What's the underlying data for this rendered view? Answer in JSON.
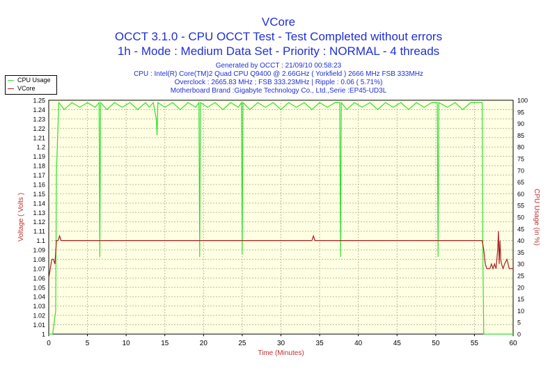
{
  "header": {
    "title": "VCore",
    "line2": "OCCT 3.1.0 - CPU OCCT Test - Test Completed without errors",
    "line3": "1h - Mode : Medium Data Set - Priority : NORMAL - 4 threads"
  },
  "info": {
    "generated": "Generated by OCCT : 21/09/10 00:58:23",
    "cpu": "CPU : Intel(R) Core(TM)2 Quad CPU Q9400 @ 2.66GHz ( Yorkfield ) 2666 MHz FSB 333MHz",
    "overclock": "Overclock : 2665.83 MHz ; FSB 333.23MHz | Ripple : 0.06 ( 5.71%)",
    "motherboard": "Motherboard Brand :Gigabyte Technology Co., Ltd.,Serie :EP45-UD3L"
  },
  "chart_data": {
    "type": "line",
    "xlabel": "Time (Minutes)",
    "ylabel_left": "Voltage ( Volts )",
    "ylabel_right": "CPU Usage (in %)",
    "xlim": [
      0,
      60
    ],
    "ylim_left": [
      1.0,
      1.25
    ],
    "ylim_right": [
      0,
      100
    ],
    "x_ticks": [
      0,
      5,
      10,
      15,
      20,
      25,
      30,
      35,
      40,
      45,
      50,
      55,
      60
    ],
    "y_ticks_left": [
      "1",
      "1.01",
      "1.02",
      "1.03",
      "1.04",
      "1.05",
      "1.06",
      "1.07",
      "1.08",
      "1.09",
      "1.1",
      "1.11",
      "1.12",
      "1.13",
      "1.14",
      "1.15",
      "1.16",
      "1.17",
      "1.18",
      "1.19",
      "1.2",
      "1.21",
      "1.22",
      "1.23",
      "1.24",
      "1.25"
    ],
    "y_ticks_right": [
      0,
      5,
      10,
      15,
      20,
      25,
      30,
      35,
      40,
      45,
      50,
      55,
      60,
      65,
      70,
      75,
      80,
      85,
      90,
      95,
      100
    ],
    "grid": true,
    "legend_position": "top-left",
    "series": [
      {
        "name": "CPU Usage",
        "axis": "right",
        "color": "#33dd33",
        "x": [
          0,
          0.5,
          0.9,
          1.0,
          1.3,
          2.0,
          3.0,
          4.0,
          5.0,
          6.0,
          6.5,
          6.6,
          6.7,
          7.5,
          8.5,
          9.5,
          10.5,
          11.5,
          12.5,
          13.0,
          13.5,
          13.9,
          14.0,
          14.1,
          15.0,
          16.0,
          17.0,
          18.0,
          19.0,
          19.4,
          19.5,
          19.6,
          20.5,
          21.5,
          22.5,
          23.5,
          24.5,
          24.9,
          25.0,
          25.1,
          26.0,
          27.0,
          28.0,
          29.0,
          30.0,
          31.0,
          32.0,
          33.0,
          34.0,
          35.0,
          36.0,
          37.0,
          37.6,
          37.7,
          37.8,
          38.5,
          39.5,
          40.5,
          41.5,
          42.5,
          43.5,
          44.5,
          45.5,
          46.5,
          47.5,
          48.5,
          49.5,
          50.2,
          50.3,
          50.4,
          51.5,
          52.5,
          53.5,
          54.5,
          55.5,
          56.0,
          56.1,
          56.2,
          57.0,
          58.0,
          59.0,
          60.0
        ],
        "values": [
          0,
          0,
          10,
          70,
          99,
          96,
          99,
          97,
          99,
          97,
          99,
          33,
          99,
          96,
          99,
          97,
          99,
          96,
          99,
          97,
          99,
          92,
          85,
          99,
          97,
          99,
          96,
          99,
          97,
          99,
          33,
          99,
          97,
          99,
          96,
          99,
          97,
          99,
          34,
          99,
          96,
          99,
          97,
          99,
          96,
          99,
          97,
          99,
          96,
          99,
          97,
          99,
          99,
          33,
          99,
          96,
          99,
          97,
          99,
          96,
          99,
          97,
          99,
          96,
          99,
          97,
          99,
          99,
          33,
          99,
          97,
          99,
          96,
          99,
          99,
          99,
          30,
          0,
          0,
          0,
          0,
          0
        ]
      },
      {
        "name": "VCore",
        "axis": "left",
        "color": "#aa1f1f",
        "x": [
          0,
          0.2,
          0.4,
          0.6,
          0.8,
          1.0,
          1.2,
          1.4,
          1.6,
          1.8,
          5.0,
          10.0,
          20.0,
          30.0,
          34.0,
          34.2,
          34.4,
          40.0,
          50.0,
          56.0,
          56.2,
          56.4,
          56.6,
          57.0,
          57.2,
          57.4,
          57.6,
          57.8,
          58.0,
          58.1,
          58.2,
          58.3,
          58.4,
          58.5,
          58.7,
          58.9,
          59.2,
          59.5,
          60.0
        ],
        "values": [
          1.06,
          1.07,
          1.08,
          1.08,
          1.075,
          1.1,
          1.1,
          1.105,
          1.1,
          1.1,
          1.1,
          1.1,
          1.1,
          1.1,
          1.1,
          1.105,
          1.1,
          1.1,
          1.1,
          1.1,
          1.09,
          1.075,
          1.07,
          1.07,
          1.075,
          1.07,
          1.075,
          1.07,
          1.09,
          1.11,
          1.075,
          1.1,
          1.08,
          1.075,
          1.07,
          1.075,
          1.08,
          1.07,
          1.07
        ]
      }
    ]
  }
}
